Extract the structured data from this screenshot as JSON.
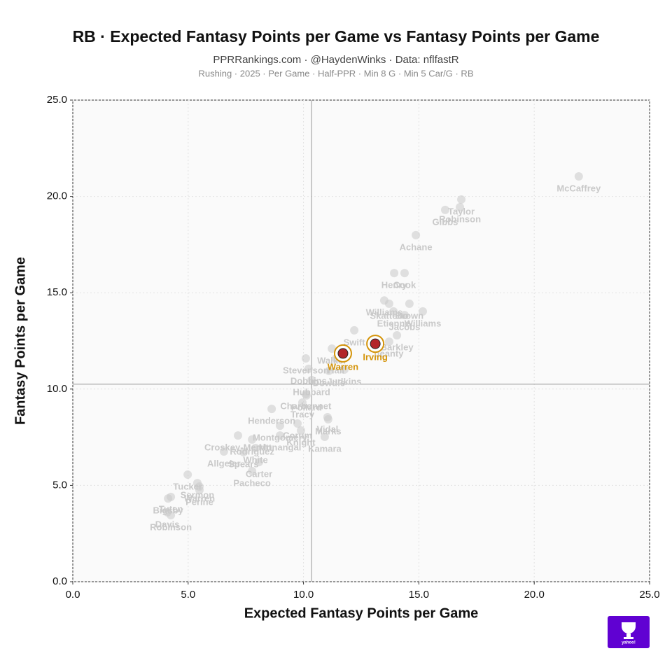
{
  "chart_data": {
    "type": "scatter",
    "title": "RB · Expected Fantasy Points per Game vs Fantasy Points per Game",
    "subtitle": "PPRRankings.com · @HaydenWinks · Data: nflfastR",
    "note": "Rushing · 2025 · Per Game · Half-PPR · Min 8 G · Min 5 Car/G · RB",
    "x_label": "Expected Fantasy Points per Game",
    "y_label": "Fantasy Points per Game",
    "xlim": [
      0,
      25
    ],
    "ylim": [
      0,
      25
    ],
    "xticks": [
      {
        "value": 0,
        "label": "0.0"
      },
      {
        "value": 5,
        "label": "5.0"
      },
      {
        "value": 10,
        "label": "10.0"
      },
      {
        "value": 15,
        "label": "15.0"
      },
      {
        "value": 20,
        "label": "20.0"
      },
      {
        "value": 25,
        "label": "25.0"
      }
    ],
    "yticks": [
      {
        "value": 0,
        "label": "0.0"
      },
      {
        "value": 5,
        "label": "5.0"
      },
      {
        "value": 10,
        "label": "10.0"
      },
      {
        "value": 15,
        "label": "15.0"
      },
      {
        "value": 20,
        "label": "20.0"
      },
      {
        "value": 25,
        "label": "25.0"
      }
    ],
    "reference_x": 10.35,
    "reference_y": 10.25,
    "color": "#c9c9c9",
    "highlight_color": "#d4940a",
    "labels": [
      "McCaffrey",
      "Taylor",
      "Robinson",
      "Gibbs",
      "Achane",
      "Henry",
      "Cook",
      "Williams",
      "Skattebo",
      "Brown",
      "Etienne",
      "Jacobs",
      "Williams",
      "Barkley",
      "Jeanty",
      "Swift",
      "Irving",
      "Warren",
      "Walker",
      "Hall",
      "Judkins",
      "Stevenson",
      "Dobbins",
      "Dowdle",
      "Hubbard",
      "Charbonnet",
      "Pollard",
      "Tracy",
      "Henderson",
      "Vidal",
      "Marks",
      "Kamara",
      "Montgomery",
      "Corum",
      "Knight",
      "Croskey-Merritt",
      "Monangai",
      "Rodriguez",
      "Allgeier",
      "Spears",
      "White",
      "Carter",
      "Pacheco",
      "Tucker",
      "Sermon",
      "Tuten",
      "Warren",
      "Perine",
      "Bigsby",
      "Davis",
      "Robinson"
    ],
    "x": [
      21.93,
      16.84,
      16.78,
      16.14,
      14.87,
      13.93,
      14.38,
      13.5,
      13.71,
      14.59,
      13.9,
      14.38,
      15.17,
      14.05,
      13.71,
      12.2,
      13.11,
      11.71,
      11.23,
      11.41,
      11.77,
      10.1,
      10.22,
      11.1,
      10.35,
      10.1,
      10.13,
      9.95,
      8.62,
      11.04,
      11.07,
      10.92,
      8.98,
      9.74,
      9.89,
      7.16,
      8.98,
      7.77,
      6.55,
      7.4,
      7.92,
      8.07,
      7.77,
      4.98,
      5.4,
      4.25,
      5.49,
      5.49,
      4.13,
      4.1,
      4.25
    ],
    "values": [
      21.04,
      19.84,
      19.44,
      19.3,
      17.99,
      16.02,
      16.02,
      14.6,
      14.43,
      14.43,
      14.03,
      13.84,
      14.03,
      12.79,
      12.46,
      13.05,
      12.35,
      11.85,
      12.1,
      11.59,
      11.01,
      11.59,
      11.05,
      10.94,
      10.47,
      9.74,
      9.67,
      9.3,
      8.97,
      8.54,
      8.43,
      7.52,
      8.1,
      8.21,
      7.85,
      7.59,
      7.59,
      7.38,
      6.76,
      6.72,
      6.94,
      6.21,
      5.74,
      5.56,
      5.12,
      4.4,
      4.94,
      4.76,
      4.32,
      3.6,
      3.45
    ],
    "highlighted": [
      false,
      false,
      false,
      false,
      false,
      false,
      false,
      false,
      false,
      false,
      false,
      false,
      false,
      false,
      false,
      false,
      true,
      true,
      false,
      false,
      false,
      false,
      false,
      false,
      false,
      false,
      false,
      false,
      false,
      false,
      false,
      false,
      false,
      false,
      false,
      false,
      false,
      false,
      false,
      false,
      false,
      false,
      false,
      false,
      false,
      false,
      false,
      false,
      false,
      false,
      false
    ],
    "logo_text": "yahoo!"
  }
}
